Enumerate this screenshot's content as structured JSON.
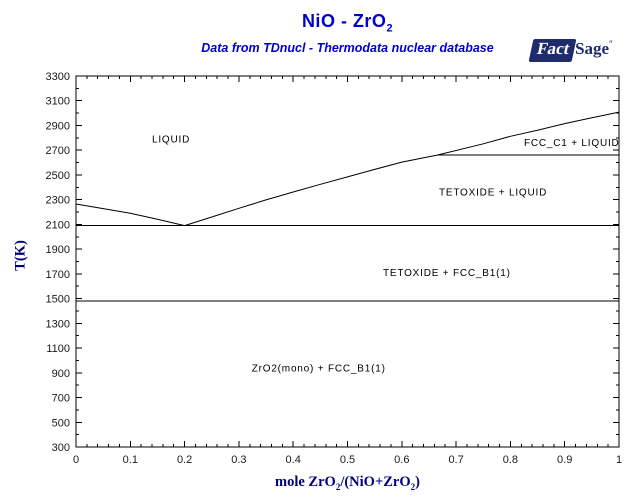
{
  "header": {
    "title": {
      "main": "NiO - ZrO",
      "sub": "2"
    },
    "subtitle": "Data from TDnucl - Thermodata nuclear database",
    "logo": {
      "fact": "Fact",
      "sage": "Sage",
      "tm": "″"
    }
  },
  "colors": {
    "title_blue": "#0000cc",
    "axis_navy": "#00007d",
    "logo_navy": "#1e2c6e",
    "boundary_line": "#000000",
    "tick_text": "#1a1a1a"
  },
  "chart_data": {
    "type": "line",
    "title": "NiO - ZrO2",
    "subtitle": "Data from TDnucl - Thermodata nuclear database",
    "xlabel_parts": [
      {
        "t": "mole ZrO",
        "sub": false
      },
      {
        "t": "2",
        "sub": true
      },
      {
        "t": "/(NiO+ZrO",
        "sub": false
      },
      {
        "t": "2",
        "sub": true
      },
      {
        "t": ")",
        "sub": false
      }
    ],
    "ylabel": "T(K)",
    "xlim": [
      0,
      1
    ],
    "ylim": [
      300,
      3300
    ],
    "x_major_step": 0.1,
    "x_minor_step": 0.02,
    "y_major_step": 200,
    "y_minor_step": 100,
    "grid": false,
    "legend": "none",
    "x_ticks": [
      {
        "label": "0",
        "value": 0
      },
      {
        "label": "0.1",
        "value": 0.1
      },
      {
        "label": "0.2",
        "value": 0.2
      },
      {
        "label": "0.3",
        "value": 0.3
      },
      {
        "label": "0.4",
        "value": 0.4
      },
      {
        "label": "0.5",
        "value": 0.5
      },
      {
        "label": "0.6",
        "value": 0.6
      },
      {
        "label": "0.7",
        "value": 0.7
      },
      {
        "label": "0.8",
        "value": 0.8
      },
      {
        "label": "0.9",
        "value": 0.9
      },
      {
        "label": "1",
        "value": 1
      }
    ],
    "y_ticks": [
      {
        "label": "300",
        "value": 300
      },
      {
        "label": "500",
        "value": 500
      },
      {
        "label": "700",
        "value": 700
      },
      {
        "label": "900",
        "value": 900
      },
      {
        "label": "1100",
        "value": 1100
      },
      {
        "label": "1300",
        "value": 1300
      },
      {
        "label": "1500",
        "value": 1500
      },
      {
        "label": "1700",
        "value": 1700
      },
      {
        "label": "1900",
        "value": 1900
      },
      {
        "label": "2100",
        "value": 2100
      },
      {
        "label": "2300",
        "value": 2300
      },
      {
        "label": "2500",
        "value": 2500
      },
      {
        "label": "2700",
        "value": 2700
      },
      {
        "label": "2900",
        "value": 2900
      },
      {
        "label": "3100",
        "value": 3100
      },
      {
        "label": "3300",
        "value": 3300
      }
    ],
    "series": [
      {
        "name": "NiO liquidus",
        "points": [
          [
            0,
            2265
          ],
          [
            0.05,
            2228
          ],
          [
            0.1,
            2190
          ],
          [
            0.15,
            2142
          ],
          [
            0.2,
            2090
          ]
        ]
      },
      {
        "name": "ZrO2 liquidus",
        "points": [
          [
            0.2,
            2090
          ],
          [
            0.25,
            2160
          ],
          [
            0.3,
            2230
          ],
          [
            0.35,
            2298
          ],
          [
            0.4,
            2362
          ],
          [
            0.45,
            2424
          ],
          [
            0.5,
            2484
          ],
          [
            0.55,
            2545
          ],
          [
            0.6,
            2604
          ],
          [
            0.665,
            2660
          ],
          [
            0.75,
            2752
          ],
          [
            0.8,
            2812
          ],
          [
            0.85,
            2862
          ],
          [
            0.9,
            2915
          ],
          [
            0.95,
            2963
          ],
          [
            1,
            3008
          ]
        ]
      },
      {
        "name": "eutectic isotherm",
        "points": [
          [
            0,
            2090
          ],
          [
            1,
            2090
          ]
        ]
      },
      {
        "name": "FCC_C1 / TETOXIDE isotherm",
        "points": [
          [
            0.665,
            2660
          ],
          [
            1,
            2660
          ]
        ]
      },
      {
        "name": "tetragonal / monoclinic isotherm",
        "points": [
          [
            0,
            1480
          ],
          [
            1,
            1480
          ]
        ]
      }
    ],
    "region_labels": [
      {
        "text": "LIQUID",
        "x": 0.175,
        "T": 2790
      },
      {
        "text": "FCC_C1 + LIQUID",
        "x": 0.913,
        "T": 2762
      },
      {
        "text": "TETOXIDE + LIQUID",
        "x": 0.768,
        "T": 2360
      },
      {
        "text": "TETOXIDE + FCC_B1(1)",
        "x": 0.683,
        "T": 1710
      },
      {
        "text": "ZrO2(mono) + FCC_B1(1)",
        "x": 0.447,
        "T": 940
      }
    ]
  }
}
